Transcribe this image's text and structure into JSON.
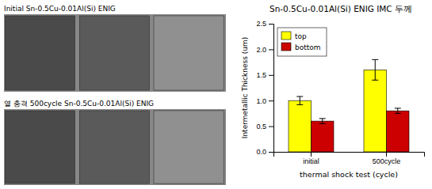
{
  "chart_data": {
    "type": "bar",
    "title": "Sn-0.5Cu-0.01Al(Si)  ENIG IMC 두께",
    "xlabel": "thermal shock test (cycle)",
    "ylabel": "Intermetallic Thickness (um)",
    "categories": [
      "initial",
      "500cycle"
    ],
    "series": [
      {
        "name": "top",
        "color": "#FFFF00",
        "values": [
          1.0,
          1.6
        ],
        "errors": [
          0.08,
          0.2
        ]
      },
      {
        "name": "bottom",
        "color": "#CC0000",
        "values": [
          0.6,
          0.8
        ],
        "errors": [
          0.05,
          0.05
        ]
      }
    ],
    "ylim": [
      0.0,
      2.5
    ],
    "yticks": [
      {
        "value": 0.0,
        "label": "0.0"
      },
      0.5,
      {
        "value": 1.0,
        "label": "1.0"
      },
      1.5,
      {
        "value": 2.0,
        "label": "2.0"
      },
      2.5
    ],
    "grid": false,
    "legend": "upper left",
    "annotations": [
      "Initial Sn-0.5Cu-0.01Al(Si)  ENIG",
      "열 충격 500cycle  Sn-0.5Cu-0.01Al(Si)  ENIG"
    ]
  }
}
